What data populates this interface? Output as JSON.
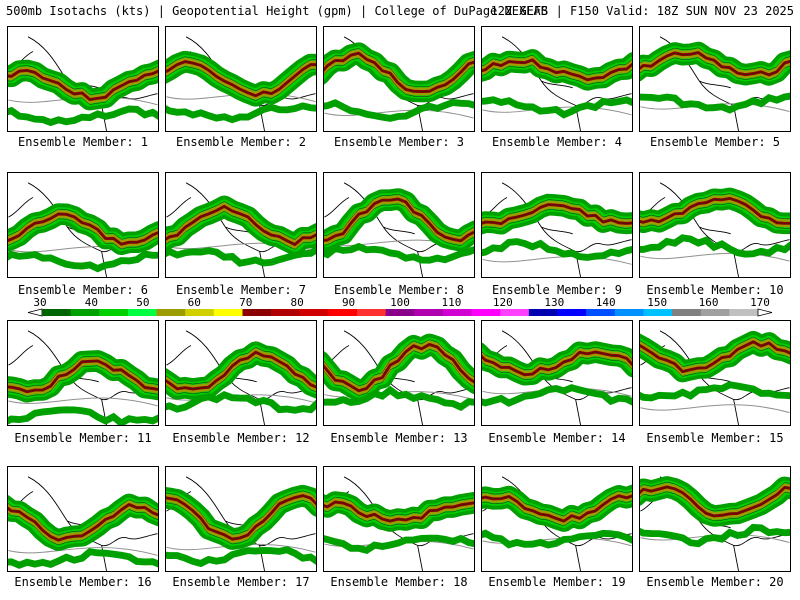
{
  "header": {
    "left": "500mb Isotachs (kts) | Geopotential Height (gpm) | College of DuPage NEXLAB",
    "right": "12Z GEFS | F150 Valid: 18Z SUN NOV 23 2025"
  },
  "panels": [
    {
      "caption": "Ensemble Member: 1"
    },
    {
      "caption": "Ensemble Member: 2"
    },
    {
      "caption": "Ensemble Member: 3"
    },
    {
      "caption": "Ensemble Member: 4"
    },
    {
      "caption": "Ensemble Member: 5"
    },
    {
      "caption": "Ensemble Member: 6"
    },
    {
      "caption": "Ensemble Member: 7"
    },
    {
      "caption": "Ensemble Member: 8"
    },
    {
      "caption": "Ensemble Member: 9"
    },
    {
      "caption": "Ensemble Member: 10"
    },
    {
      "caption": "Ensemble Member: 11"
    },
    {
      "caption": "Ensemble Member: 12"
    },
    {
      "caption": "Ensemble Member: 13"
    },
    {
      "caption": "Ensemble Member: 14"
    },
    {
      "caption": "Ensemble Member: 15"
    },
    {
      "caption": "Ensemble Member: 16"
    },
    {
      "caption": "Ensemble Member: 17"
    },
    {
      "caption": "Ensemble Member: 18"
    },
    {
      "caption": "Ensemble Member: 19"
    },
    {
      "caption": "Ensemble Member: 20"
    }
  ],
  "colorbar": {
    "labels": [
      "30",
      "40",
      "50",
      "60",
      "70",
      "80",
      "90",
      "100",
      "110",
      "120",
      "130",
      "140",
      "150",
      "160",
      "170"
    ],
    "colors": [
      "#006400",
      "#00a000",
      "#00d000",
      "#00ff40",
      "#9c9c00",
      "#d0d000",
      "#ffff00",
      "#8b0000",
      "#b00000",
      "#d00000",
      "#ff0000",
      "#ff3030",
      "#8b008b",
      "#b000b0",
      "#d000d0",
      "#ff00ff",
      "#ff40ff",
      "#0000b0",
      "#0000ff",
      "#0050ff",
      "#0090ff",
      "#00c0ff",
      "#808080",
      "#a0a0a0",
      "#c0c0c0"
    ]
  }
}
